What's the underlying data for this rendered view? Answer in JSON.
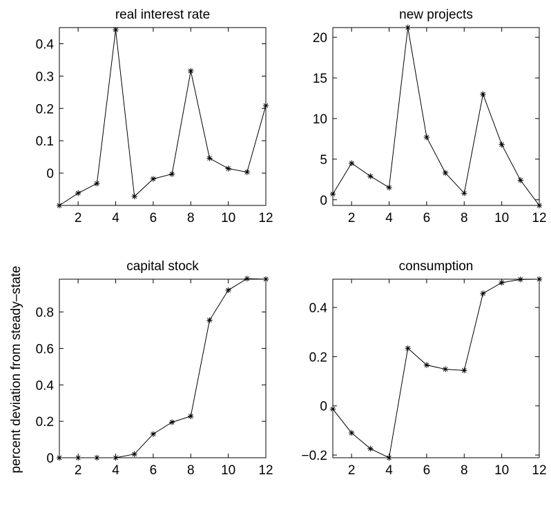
{
  "figure": {
    "ylabel": "percent deviation from steady–state"
  },
  "chart_data": [
    {
      "type": "line",
      "title": "real interest rate",
      "x": [
        1,
        2,
        3,
        4,
        5,
        6,
        7,
        8,
        9,
        10,
        11,
        12
      ],
      "series": [
        {
          "values": [
            -0.1,
            -0.062,
            -0.032,
            0.443,
            -0.072,
            -0.018,
            -0.003,
            0.316,
            0.046,
            0.014,
            0.003,
            0.209
          ]
        }
      ],
      "xlim": [
        1,
        12
      ],
      "ylim": [
        -0.1,
        0.45
      ],
      "xticks": [
        2,
        4,
        6,
        8,
        10,
        12
      ],
      "yticks": [
        0,
        0.1,
        0.2,
        0.3,
        0.4
      ],
      "xticklabels": [
        "2",
        "4",
        "6",
        "8",
        "10",
        "12"
      ],
      "yticklabels": [
        "0",
        "0.1",
        "0.2",
        "0.3",
        "0.4"
      ],
      "marker": "asterisk",
      "line_color": "#000000",
      "grid": false
    },
    {
      "type": "line",
      "title": "new projects",
      "x": [
        1,
        2,
        3,
        4,
        5,
        6,
        7,
        8,
        9,
        10,
        11,
        12
      ],
      "series": [
        {
          "values": [
            0.7,
            4.5,
            2.9,
            1.5,
            21.2,
            7.7,
            3.3,
            0.8,
            13.0,
            6.8,
            2.4,
            -0.7
          ]
        }
      ],
      "xlim": [
        1,
        12
      ],
      "ylim": [
        -0.7,
        21.2
      ],
      "xticks": [
        2,
        4,
        6,
        8,
        10,
        12
      ],
      "yticks": [
        0,
        5,
        10,
        15,
        20
      ],
      "xticklabels": [
        "2",
        "4",
        "6",
        "8",
        "10",
        "12"
      ],
      "yticklabels": [
        "0",
        "5",
        "10",
        "15",
        "20"
      ],
      "marker": "asterisk",
      "line_color": "#000000",
      "grid": false
    },
    {
      "type": "line",
      "title": "capital stock",
      "x": [
        1,
        2,
        3,
        4,
        5,
        6,
        7,
        8,
        9,
        10,
        11,
        12
      ],
      "series": [
        {
          "values": [
            0.0,
            0.0,
            0.0,
            0.0,
            0.02,
            0.13,
            0.195,
            0.228,
            0.755,
            0.92,
            0.983,
            0.98
          ]
        }
      ],
      "xlim": [
        1,
        12
      ],
      "ylim": [
        0,
        0.98
      ],
      "xticks": [
        2,
        4,
        6,
        8,
        10,
        12
      ],
      "yticks": [
        0,
        0.2,
        0.4,
        0.6,
        0.8
      ],
      "xticklabels": [
        "2",
        "4",
        "6",
        "8",
        "10",
        "12"
      ],
      "yticklabels": [
        "0",
        "0.2",
        "0.4",
        "0.6",
        "0.8"
      ],
      "marker": "asterisk",
      "line_color": "#000000",
      "grid": false
    },
    {
      "type": "line",
      "title": "consumption",
      "x": [
        1,
        2,
        3,
        4,
        5,
        6,
        7,
        8,
        9,
        10,
        11,
        12
      ],
      "series": [
        {
          "values": [
            -0.013,
            -0.11,
            -0.174,
            -0.211,
            0.234,
            0.166,
            0.149,
            0.144,
            0.457,
            0.501,
            0.514,
            0.515
          ]
        }
      ],
      "xlim": [
        1,
        12
      ],
      "ylim": [
        -0.211,
        0.515
      ],
      "xticks": [
        2,
        4,
        6,
        8,
        10,
        12
      ],
      "yticks": [
        -0.2,
        0,
        0.2,
        0.4
      ],
      "xticklabels": [
        "2",
        "4",
        "6",
        "8",
        "10",
        "12"
      ],
      "yticklabels": [
        "−0.2",
        "0",
        "0.2",
        "0.4"
      ],
      "marker": "asterisk",
      "line_color": "#000000",
      "grid": false
    }
  ]
}
